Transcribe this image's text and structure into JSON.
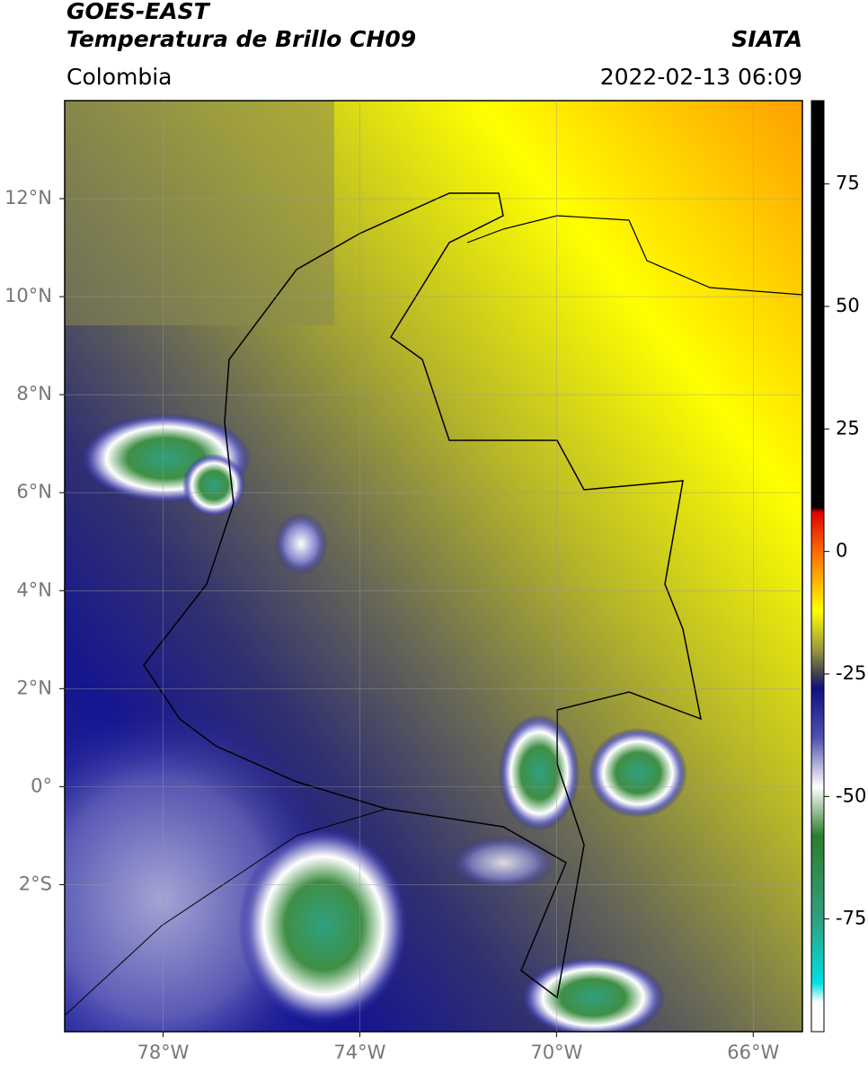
{
  "header": {
    "title": "GOES-EAST",
    "subtitle": "Temperatura de Brillo CH09",
    "source": "SIATA",
    "region": "Colombia",
    "datetime": "2022-02-13 06:09"
  },
  "map": {
    "xlim": [
      -80,
      -65
    ],
    "ylim": [
      -5,
      14
    ],
    "xticks": [
      {
        "value": -78,
        "label": "78°W"
      },
      {
        "value": -74,
        "label": "74°W"
      },
      {
        "value": -70,
        "label": "70°W"
      },
      {
        "value": -66,
        "label": "66°W"
      }
    ],
    "yticks": [
      {
        "value": 12,
        "label": "12°N"
      },
      {
        "value": 10,
        "label": "10°N"
      },
      {
        "value": 8,
        "label": "8°N"
      },
      {
        "value": 6,
        "label": "6°N"
      },
      {
        "value": 4,
        "label": "4°N"
      },
      {
        "value": 2,
        "label": "2°N"
      },
      {
        "value": 0,
        "label": "0°"
      },
      {
        "value": -2,
        "label": "2°S"
      }
    ],
    "grid": true
  },
  "colorbar": {
    "limits": [
      -98,
      92
    ],
    "ticks": [
      75,
      50,
      25,
      0,
      -25,
      -50,
      -75
    ],
    "stops": [
      {
        "value": 92,
        "color": "#000000"
      },
      {
        "value": 9,
        "color": "#000000"
      },
      {
        "value": 8,
        "color": "#e00000"
      },
      {
        "value": 0,
        "color": "#ff6a00"
      },
      {
        "value": -12,
        "color": "#ffff00"
      },
      {
        "value": -20,
        "color": "#9a9a40"
      },
      {
        "value": -25,
        "color": "#404050"
      },
      {
        "value": -28,
        "color": "#101080"
      },
      {
        "value": -38,
        "color": "#5050b0"
      },
      {
        "value": -48,
        "color": "#ffffff"
      },
      {
        "value": -58,
        "color": "#2e7d2e"
      },
      {
        "value": -75,
        "color": "#30a080"
      },
      {
        "value": -88,
        "color": "#00e0e0"
      },
      {
        "value": -92,
        "color": "#ffffff"
      },
      {
        "value": -98,
        "color": "#ffffff"
      }
    ]
  }
}
